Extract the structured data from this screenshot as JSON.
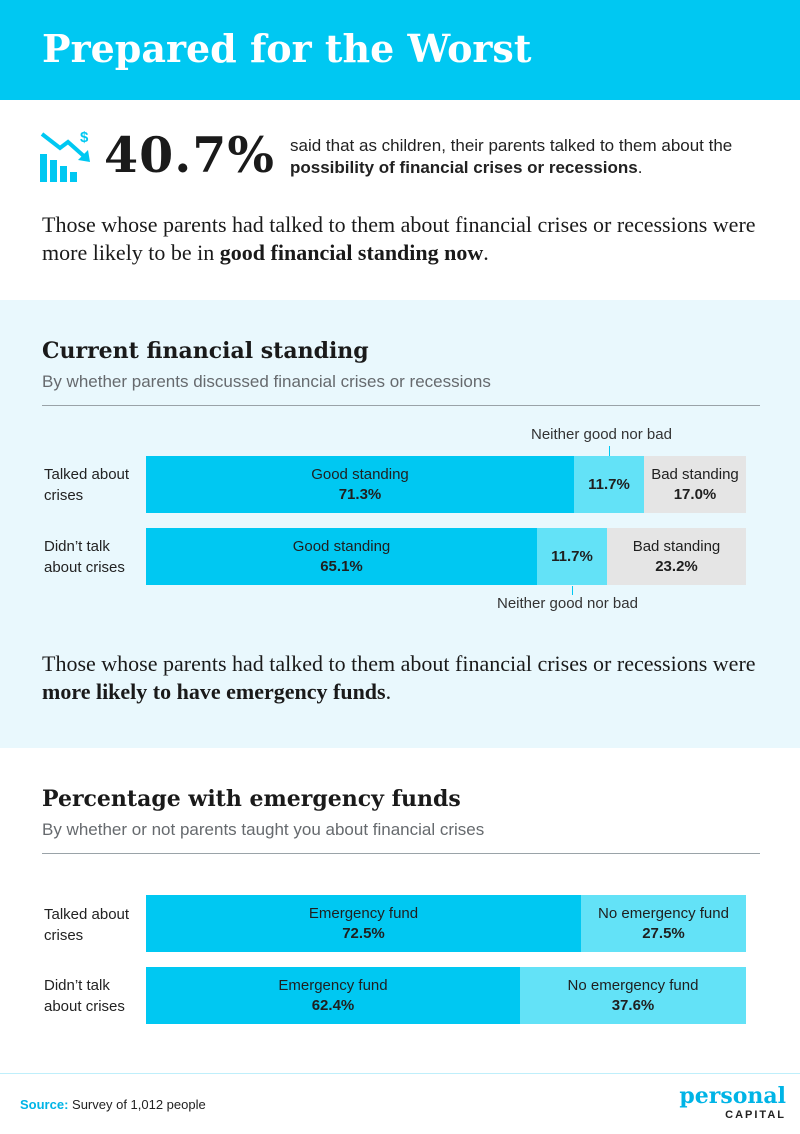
{
  "header": {
    "title": "Prepared for the Worst"
  },
  "stat": {
    "icon": "declining-bar-chart-dollar-icon",
    "value": "40.7%",
    "desc_prefix": "said that as children, their parents talked to them about the ",
    "desc_bold": "possibility of financial crises or recessions",
    "desc_suffix": "."
  },
  "intro1": {
    "prefix": "Those whose parents had talked to them about financial crises or recessions were more likely to be in ",
    "bold": "good financial standing now",
    "suffix": "."
  },
  "intro2": {
    "prefix": "Those whose parents had talked to them about financial crises or recessions were ",
    "bold": "more likely to have emergency funds",
    "suffix": "."
  },
  "chart_data": [
    {
      "type": "bar",
      "stacked": true,
      "orientation": "horizontal",
      "title": "Current financial standing",
      "subtitle": "By whether parents discussed financial crises or recessions",
      "categories": [
        "Talked about crises",
        "Didn’t talk about crises"
      ],
      "series": [
        {
          "name": "Good standing",
          "values": [
            71.3,
            65.1
          ],
          "labels": [
            "71.3%",
            "65.1%"
          ],
          "color": "#00c8f2"
        },
        {
          "name": "Neither good nor bad",
          "values": [
            11.7,
            11.7
          ],
          "labels": [
            "11.7%",
            "11.7%"
          ],
          "color": "#63e2f7"
        },
        {
          "name": "Bad standing",
          "values": [
            17.0,
            23.2
          ],
          "labels": [
            "17.0%",
            "23.2%"
          ],
          "color": "#e5e5e5"
        }
      ],
      "xlim": [
        0,
        100
      ]
    },
    {
      "type": "bar",
      "stacked": true,
      "orientation": "horizontal",
      "title": "Percentage with emergency funds",
      "subtitle": "By whether or not parents taught you about financial crises",
      "categories": [
        "Talked about crises",
        "Didn’t talk about crises"
      ],
      "series": [
        {
          "name": "Emergency fund",
          "values": [
            72.5,
            62.4
          ],
          "labels": [
            "72.5%",
            "62.4%"
          ],
          "color": "#00c8f2"
        },
        {
          "name": "No emergency fund",
          "values": [
            27.5,
            37.6
          ],
          "labels": [
            "27.5%",
            "37.6%"
          ],
          "color": "#63e2f7"
        }
      ],
      "xlim": [
        0,
        100
      ]
    }
  ],
  "chart1_labels": {
    "row1_l1": "Talked about",
    "row1_l2": "crises",
    "row2_l1": "Didn’t talk",
    "row2_l2": "about crises"
  },
  "chart2_labels": {
    "row1_l1": "Talked about",
    "row1_l2": "crises",
    "row2_l1": "Didn’t talk",
    "row2_l2": "about crises"
  },
  "footer": {
    "source_label": "Source:",
    "source_text": " Survey of 1,012 people",
    "logo_top": "personal",
    "logo_bottom": "CAPITAL"
  }
}
